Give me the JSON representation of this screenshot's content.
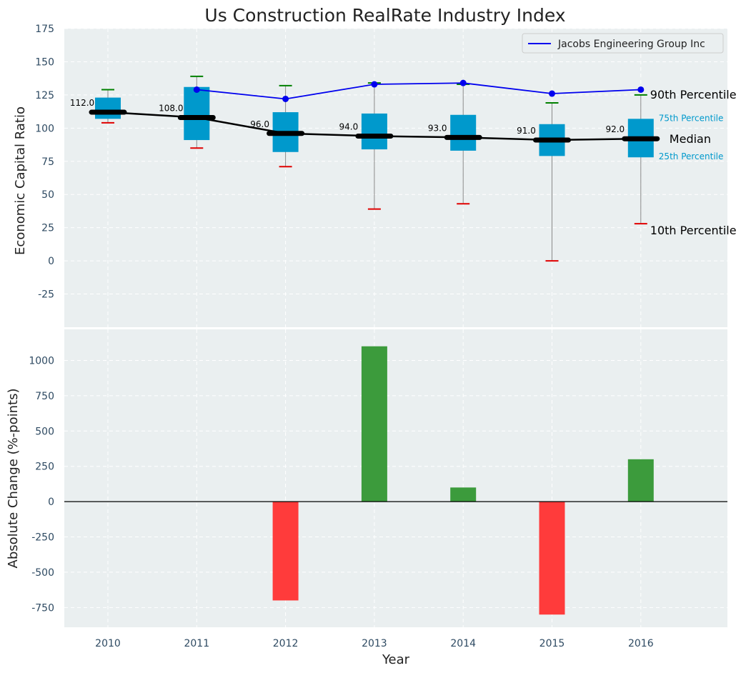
{
  "chart_data": [
    {
      "type": "box",
      "title": "Us Construction RealRate Industry Index",
      "ylabel": "Economic Capital Ratio",
      "ylim": [
        -50,
        175
      ],
      "yticks": [
        -25,
        0,
        25,
        50,
        75,
        100,
        125,
        150,
        175
      ],
      "grid": true,
      "legend_position": "top-right",
      "categories": [
        "2010",
        "2011",
        "2012",
        "2013",
        "2014",
        "2015",
        "2016"
      ],
      "p10": [
        104,
        85,
        71,
        39,
        43,
        0,
        28
      ],
      "p25": [
        107,
        91,
        82,
        84,
        83,
        79,
        78
      ],
      "median": [
        112,
        108,
        96,
        94,
        93,
        91,
        92
      ],
      "p75": [
        123,
        131,
        112,
        111,
        110,
        103,
        107
      ],
      "p90": [
        129,
        139,
        132,
        134,
        133,
        119,
        125
      ],
      "median_labels": [
        "112.0",
        "108.0",
        "96.0",
        "94.0",
        "93.0",
        "91.0",
        "92.0"
      ],
      "series": [
        {
          "name": "Jacobs Engineering Group Inc",
          "values": [
            null,
            129,
            122,
            133,
            134,
            126,
            129
          ],
          "color": "#0000ee"
        }
      ],
      "annotations": {
        "p90": "90th Percentile",
        "p75": "75th Percentile",
        "median": "Median",
        "p25": "25th Percentile",
        "p10": "10th Percentile"
      }
    },
    {
      "type": "bar",
      "xlabel": "Year",
      "ylabel": "Absolute Change (%-points)",
      "ylim": [
        -890,
        1220
      ],
      "yticks": [
        -750,
        -500,
        -250,
        0,
        250,
        500,
        750,
        1000
      ],
      "grid": true,
      "categories": [
        "2010",
        "2011",
        "2012",
        "2013",
        "2014",
        "2015",
        "2016"
      ],
      "values": [
        0,
        0,
        -700,
        1100,
        100,
        -800,
        300
      ],
      "positive_color": "#3c9b3c",
      "negative_color": "#ff3b3b"
    }
  ],
  "colors": {
    "plot_bg": "#eaeff0",
    "box_fill": "#0099cc",
    "median_line": "#000000",
    "p90_cap": "#008000",
    "p10_cap": "#e00000",
    "whisker": "#8a8a8a",
    "axis_text": "#2e4a62",
    "annotation_blue": "#0099cc"
  }
}
